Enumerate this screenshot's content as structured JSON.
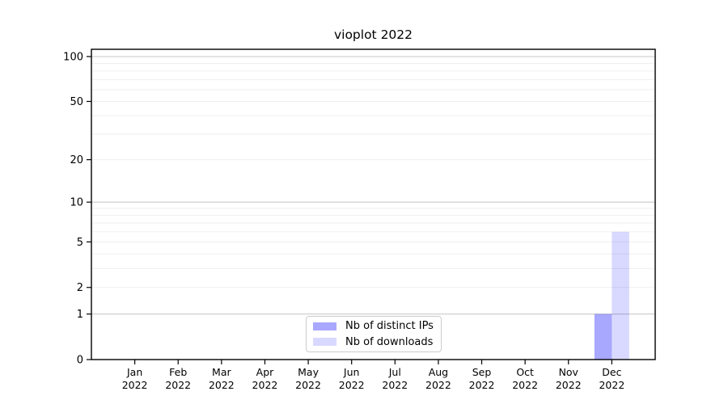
{
  "chart_data": {
    "type": "bar",
    "title": "vioplot 2022",
    "categories": [
      "Jan",
      "Feb",
      "Mar",
      "Apr",
      "May",
      "Jun",
      "Jul",
      "Aug",
      "Sep",
      "Oct",
      "Nov",
      "Dec"
    ],
    "category_sublabel": "2022",
    "series": [
      {
        "name": "Nb of distinct IPs",
        "color": "rgba(0,0,255,0.34)",
        "values": [
          0,
          0,
          0,
          0,
          0,
          0,
          0,
          0,
          0,
          0,
          0,
          1
        ]
      },
      {
        "name": "Nb of downloads",
        "color": "rgba(0,0,255,0.15)",
        "values": [
          0,
          0,
          0,
          0,
          0,
          0,
          0,
          0,
          0,
          0,
          0,
          6
        ]
      }
    ],
    "yscale": "log1p",
    "ylim": [
      0,
      100
    ],
    "yticks": [
      0,
      1,
      2,
      5,
      10,
      20,
      50,
      100
    ],
    "grid": {
      "major": [
        1,
        10,
        100
      ],
      "minor": [
        2,
        3,
        4,
        5,
        6,
        7,
        8,
        9,
        20,
        30,
        40,
        50,
        60,
        70,
        80,
        90
      ],
      "major_color": "#c9c9c9",
      "minor_color": "#efefef"
    },
    "axis_color": "#000000",
    "legend_position": "bottom-center"
  }
}
